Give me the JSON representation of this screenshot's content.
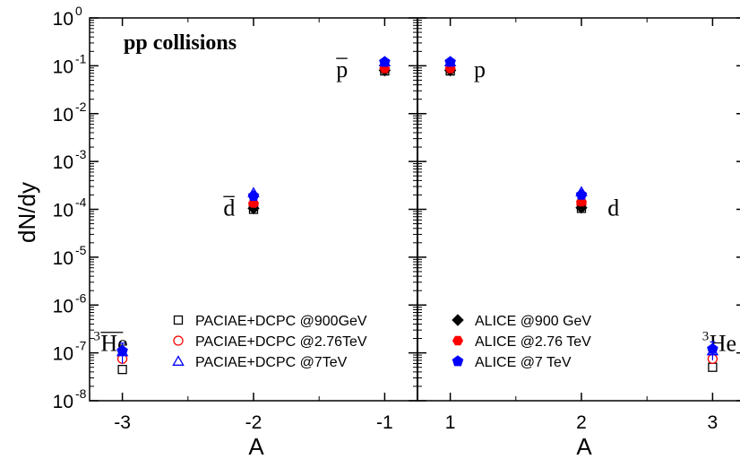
{
  "chart_data": {
    "type": "scatter",
    "title": "pp collisions",
    "ylabel": "dN/dy",
    "xlabel": "A",
    "y_scale": "log",
    "ylim": [
      1e-08,
      1
    ],
    "y_ticks": [
      {
        "value": 1,
        "base": "10",
        "exp": "0"
      },
      {
        "value": 0.1,
        "base": "10",
        "exp": "-1"
      },
      {
        "value": 0.01,
        "base": "10",
        "exp": "-2"
      },
      {
        "value": 0.001,
        "base": "10",
        "exp": "-3"
      },
      {
        "value": 0.0001,
        "base": "10",
        "exp": "-4"
      },
      {
        "value": 1e-05,
        "base": "10",
        "exp": "-5"
      },
      {
        "value": 1e-06,
        "base": "10",
        "exp": "-6"
      },
      {
        "value": 1e-07,
        "base": "10",
        "exp": "-7"
      },
      {
        "value": 1e-08,
        "base": "10",
        "exp": "-8"
      }
    ],
    "panels": [
      {
        "xlim": [
          -3.25,
          -0.75
        ],
        "x_ticks": [
          {
            "value": -3,
            "label": "-3"
          },
          {
            "value": -2,
            "label": "-2"
          },
          {
            "value": -1,
            "label": "-1"
          }
        ],
        "annotations": [
          {
            "text": "p",
            "bar": true,
            "x": -1.37,
            "y": 0.085
          },
          {
            "text": "d",
            "bar": true,
            "x": -2.23,
            "y": 0.00011
          },
          {
            "text": "He",
            "sup": "3",
            "bar": true,
            "x": -3.22,
            "y": 1.6e-07
          }
        ]
      },
      {
        "xlim": [
          0.75,
          3.25
        ],
        "x_ticks": [
          {
            "value": 1,
            "label": "1"
          },
          {
            "value": 2,
            "label": "2"
          },
          {
            "value": 3,
            "label": "3"
          }
        ],
        "annotations": [
          {
            "text": "p",
            "bar": false,
            "x": 1.18,
            "y": 0.085
          },
          {
            "text": "d",
            "bar": false,
            "x": 2.2,
            "y": 0.00011
          },
          {
            "text": "He",
            "sup": "3",
            "bar": false,
            "x": 2.92,
            "y": 1.6e-07
          }
        ]
      }
    ],
    "legends": [
      {
        "panel": 0,
        "entries": [
          {
            "marker": "square-open",
            "color": "#000000",
            "label": "PACIAE+DCPC @900GeV"
          },
          {
            "marker": "circle-open",
            "color": "#ff0000",
            "label": "PACIAE+DCPC @2.76TeV"
          },
          {
            "marker": "triangle-open",
            "color": "#0000ff",
            "label": "PACIAE+DCPC @7TeV"
          }
        ]
      },
      {
        "panel": 1,
        "entries": [
          {
            "marker": "diamond-filled",
            "color": "#000000",
            "label": "ALICE @900 GeV"
          },
          {
            "marker": "hexagon-filled",
            "color": "#ff0000",
            "label": "ALICE @2.76 TeV"
          },
          {
            "marker": "pentagon-filled",
            "color": "#0000ff",
            "label": "ALICE @7 TeV"
          }
        ]
      }
    ],
    "series": [
      {
        "name": "PACIAE+DCPC @900GeV",
        "marker": "square-open",
        "color": "#000000",
        "points": [
          {
            "x": -3,
            "y": 4.5e-08
          },
          {
            "x": -2,
            "y": 0.0001
          },
          {
            "x": -1,
            "y": 0.078
          },
          {
            "x": 1,
            "y": 0.078
          },
          {
            "x": 2,
            "y": 0.000105
          },
          {
            "x": 3,
            "y": 5e-08
          }
        ]
      },
      {
        "name": "PACIAE+DCPC @2.76TeV",
        "marker": "circle-open",
        "color": "#ff0000",
        "points": [
          {
            "x": -3,
            "y": 7.5e-08
          },
          {
            "x": -2,
            "y": 0.000125
          },
          {
            "x": -1,
            "y": 0.085
          },
          {
            "x": 1,
            "y": 0.085
          },
          {
            "x": 2,
            "y": 0.00013
          },
          {
            "x": 3,
            "y": 7.5e-08
          }
        ]
      },
      {
        "name": "PACIAE+DCPC @7TeV",
        "marker": "triangle-open",
        "color": "#0000ff",
        "points": [
          {
            "x": -3,
            "y": 1.05e-07
          },
          {
            "x": -2,
            "y": 0.00022
          },
          {
            "x": -1,
            "y": 0.12
          },
          {
            "x": 1,
            "y": 0.12
          },
          {
            "x": 2,
            "y": 0.00023
          },
          {
            "x": 3,
            "y": 1.1e-07
          }
        ]
      },
      {
        "name": "ALICE @900 GeV",
        "marker": "diamond-filled",
        "color": "#000000",
        "points": [
          {
            "x": -2,
            "y": 0.000105
          },
          {
            "x": -1,
            "y": 0.08
          },
          {
            "x": 1,
            "y": 0.08
          },
          {
            "x": 2,
            "y": 0.000108
          }
        ]
      },
      {
        "name": "ALICE @2.76 TeV",
        "marker": "hexagon-filled",
        "color": "#ff0000",
        "points": [
          {
            "x": -2,
            "y": 0.000135
          },
          {
            "x": -1,
            "y": 0.088
          },
          {
            "x": 1,
            "y": 0.088
          },
          {
            "x": 2,
            "y": 0.000145
          }
        ]
      },
      {
        "name": "ALICE @7 TeV",
        "marker": "pentagon-filled",
        "color": "#0000ff",
        "points": [
          {
            "x": -3,
            "y": 1.1e-07,
            "err": 5e-08
          },
          {
            "x": -2,
            "y": 0.00019
          },
          {
            "x": -1,
            "y": 0.12
          },
          {
            "x": 1,
            "y": 0.12
          },
          {
            "x": 2,
            "y": 0.0002
          },
          {
            "x": 3,
            "y": 1.2e-07,
            "err": 5e-08
          }
        ]
      }
    ]
  }
}
